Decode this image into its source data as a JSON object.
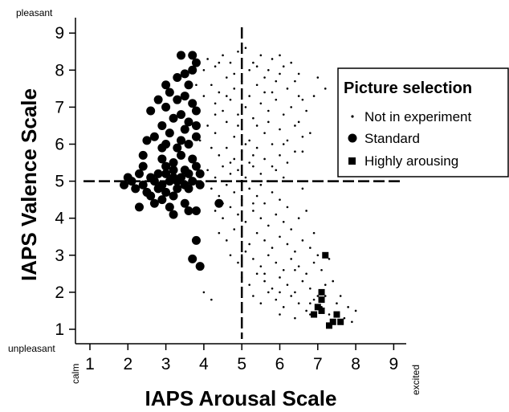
{
  "chart_data": {
    "type": "scatter",
    "xlabel": "IAPS Arousal Scale",
    "ylabel": "IAPS Valence Scale",
    "xlim": [
      0.9,
      9.3
    ],
    "ylim": [
      0.6,
      9.4
    ],
    "x_ticks": [
      "1",
      "2",
      "3",
      "4",
      "5",
      "6",
      "7",
      "8",
      "9"
    ],
    "y_ticks": [
      "1",
      "2",
      "3",
      "4",
      "5",
      "6",
      "7",
      "8",
      "9"
    ],
    "x_low_end_label": "calm",
    "x_high_end_label": "excited",
    "y_high_end_label": "pleasant",
    "y_low_end_label": "unpleasant",
    "reference_lines": {
      "x": 5,
      "y": 5,
      "style": "dashed"
    },
    "grid": false,
    "legend": {
      "title": "Picture selection",
      "placement": "top-right",
      "entries": [
        {
          "label": "Not in experiment",
          "marker": "small-dot"
        },
        {
          "label": "Standard",
          "marker": "large-circle"
        },
        {
          "label": "Highly arousing",
          "marker": "square"
        }
      ]
    },
    "series": [
      {
        "name": "Not in experiment",
        "marker": "small-dot",
        "points": [
          [
            4.1,
            8.3
          ],
          [
            4.3,
            8.1
          ],
          [
            4.5,
            8.4
          ],
          [
            4.7,
            8.2
          ],
          [
            4.9,
            8.5
          ],
          [
            5.1,
            8.6
          ],
          [
            5.3,
            8.2
          ],
          [
            5.5,
            8.4
          ],
          [
            5.2,
            8.0
          ],
          [
            4.8,
            7.9
          ],
          [
            4.2,
            7.6
          ],
          [
            4.4,
            7.4
          ],
          [
            4.6,
            7.8
          ],
          [
            4.8,
            7.5
          ],
          [
            5.0,
            7.7
          ],
          [
            5.2,
            7.3
          ],
          [
            5.4,
            7.6
          ],
          [
            5.6,
            7.8
          ],
          [
            5.8,
            7.4
          ],
          [
            6.0,
            7.9
          ],
          [
            6.2,
            7.5
          ],
          [
            6.4,
            7.7
          ],
          [
            6.6,
            7.2
          ],
          [
            5.7,
            8.0
          ],
          [
            6.1,
            8.1
          ],
          [
            6.5,
            7.9
          ],
          [
            4.3,
            7.1
          ],
          [
            4.5,
            6.9
          ],
          [
            4.7,
            7.2
          ],
          [
            4.9,
            6.8
          ],
          [
            5.1,
            7.0
          ],
          [
            5.3,
            6.7
          ],
          [
            5.5,
            7.1
          ],
          [
            5.7,
            6.9
          ],
          [
            5.9,
            7.2
          ],
          [
            6.1,
            6.8
          ],
          [
            6.3,
            7.0
          ],
          [
            6.5,
            6.6
          ],
          [
            6.7,
            6.9
          ],
          [
            5.6,
            7.4
          ],
          [
            4.1,
            6.5
          ],
          [
            4.3,
            6.3
          ],
          [
            4.6,
            6.6
          ],
          [
            4.8,
            6.2
          ],
          [
            5.0,
            6.4
          ],
          [
            5.2,
            6.1
          ],
          [
            5.4,
            6.5
          ],
          [
            5.6,
            6.3
          ],
          [
            5.8,
            6.0
          ],
          [
            6.0,
            6.4
          ],
          [
            6.2,
            6.1
          ],
          [
            6.4,
            6.5
          ],
          [
            6.6,
            6.2
          ],
          [
            4.2,
            5.9
          ],
          [
            4.4,
            5.7
          ],
          [
            4.6,
            5.9
          ],
          [
            4.8,
            5.6
          ],
          [
            5.0,
            5.8
          ],
          [
            5.2,
            5.5
          ],
          [
            5.4,
            5.9
          ],
          [
            5.6,
            5.6
          ],
          [
            5.8,
            5.4
          ],
          [
            6.0,
            5.7
          ],
          [
            6.2,
            5.5
          ],
          [
            4.1,
            5.3
          ],
          [
            4.3,
            5.1
          ],
          [
            4.5,
            5.4
          ],
          [
            4.7,
            5.2
          ],
          [
            4.9,
            5.3
          ],
          [
            5.1,
            5.1
          ],
          [
            5.3,
            5.4
          ],
          [
            5.5,
            5.2
          ],
          [
            5.7,
            5.0
          ],
          [
            5.9,
            5.3
          ],
          [
            6.1,
            5.1
          ],
          [
            4.2,
            4.8
          ],
          [
            4.4,
            4.6
          ],
          [
            4.6,
            4.9
          ],
          [
            4.8,
            4.7
          ],
          [
            5.0,
            4.5
          ],
          [
            5.2,
            4.8
          ],
          [
            5.4,
            4.6
          ],
          [
            5.6,
            4.4
          ],
          [
            5.8,
            4.7
          ],
          [
            6.0,
            4.5
          ],
          [
            6.2,
            4.3
          ],
          [
            4.3,
            4.2
          ],
          [
            4.5,
            4.0
          ],
          [
            4.7,
            4.3
          ],
          [
            4.9,
            4.1
          ],
          [
            5.1,
            3.9
          ],
          [
            5.3,
            4.2
          ],
          [
            5.5,
            4.0
          ],
          [
            5.7,
            3.8
          ],
          [
            5.9,
            4.1
          ],
          [
            6.1,
            3.9
          ],
          [
            6.3,
            3.7
          ],
          [
            6.5,
            4.0
          ],
          [
            4.4,
            3.6
          ],
          [
            4.6,
            3.4
          ],
          [
            4.8,
            3.7
          ],
          [
            5.0,
            3.5
          ],
          [
            5.2,
            3.3
          ],
          [
            5.4,
            3.6
          ],
          [
            5.6,
            3.4
          ],
          [
            5.8,
            3.2
          ],
          [
            6.0,
            3.5
          ],
          [
            6.2,
            3.3
          ],
          [
            6.4,
            3.1
          ],
          [
            6.6,
            3.4
          ],
          [
            6.8,
            3.2
          ],
          [
            4.7,
            3.0
          ],
          [
            4.9,
            2.8
          ],
          [
            5.1,
            3.1
          ],
          [
            5.3,
            2.9
          ],
          [
            5.5,
            2.7
          ],
          [
            5.7,
            3.0
          ],
          [
            5.9,
            2.8
          ],
          [
            6.1,
            2.6
          ],
          [
            6.3,
            2.9
          ],
          [
            6.5,
            2.7
          ],
          [
            6.7,
            2.5
          ],
          [
            6.9,
            2.8
          ],
          [
            7.1,
            2.6
          ],
          [
            5.0,
            2.4
          ],
          [
            5.2,
            2.2
          ],
          [
            5.4,
            2.5
          ],
          [
            5.6,
            2.3
          ],
          [
            5.8,
            2.1
          ],
          [
            6.0,
            2.4
          ],
          [
            6.2,
            2.2
          ],
          [
            6.4,
            2.0
          ],
          [
            6.6,
            2.3
          ],
          [
            6.8,
            2.1
          ],
          [
            7.0,
            1.9
          ],
          [
            7.2,
            2.2
          ],
          [
            5.3,
            1.9
          ],
          [
            5.5,
            1.7
          ],
          [
            5.7,
            2.0
          ],
          [
            5.9,
            1.8
          ],
          [
            6.1,
            1.6
          ],
          [
            6.3,
            1.9
          ],
          [
            6.5,
            1.7
          ],
          [
            6.7,
            1.5
          ],
          [
            6.9,
            1.8
          ],
          [
            7.1,
            1.6
          ],
          [
            7.3,
            1.4
          ],
          [
            7.5,
            1.7
          ],
          [
            7.7,
            1.3
          ],
          [
            7.9,
            1.2
          ],
          [
            6.0,
            1.4
          ],
          [
            6.4,
            1.3
          ],
          [
            6.8,
            1.4
          ],
          [
            4.2,
            1.8
          ],
          [
            4.0,
            2.0
          ],
          [
            3.9,
            6.1
          ],
          [
            3.8,
            7.6
          ],
          [
            4.0,
            8.0
          ],
          [
            7.0,
            7.8
          ],
          [
            7.2,
            7.5
          ],
          [
            7.7,
            7.7
          ],
          [
            7.8,
            7.4
          ],
          [
            6.9,
            7.3
          ],
          [
            6.0,
            8.4
          ],
          [
            6.3,
            8.2
          ],
          [
            4.6,
            7.3
          ],
          [
            5.4,
            8.1
          ],
          [
            5.9,
            7.7
          ],
          [
            4.3,
            6.8
          ],
          [
            6.8,
            6.3
          ],
          [
            6.6,
            5.8
          ],
          [
            6.4,
            5.8
          ],
          [
            6.6,
            4.8
          ],
          [
            6.7,
            4.2
          ],
          [
            6.9,
            3.6
          ],
          [
            7.0,
            3.0
          ],
          [
            7.3,
            2.9
          ],
          [
            7.4,
            2.3
          ],
          [
            7.6,
            1.9
          ],
          [
            7.8,
            1.6
          ],
          [
            8.0,
            1.5
          ],
          [
            4.9,
            6.5
          ],
          [
            5.1,
            6.0
          ],
          [
            5.3,
            5.7
          ],
          [
            4.7,
            5.5
          ],
          [
            5.7,
            6.6
          ],
          [
            6.1,
            6.0
          ],
          [
            5.5,
            4.9
          ],
          [
            5.3,
            4.4
          ],
          [
            4.5,
            4.4
          ],
          [
            5.0,
            3.0
          ],
          [
            5.6,
            2.5
          ],
          [
            6.0,
            2.0
          ],
          [
            6.4,
            2.6
          ],
          [
            6.8,
            1.7
          ],
          [
            7.2,
            1.9
          ],
          [
            4.4,
            8.2
          ],
          [
            5.8,
            8.3
          ],
          [
            4.0,
            7.3
          ],
          [
            6.5,
            7.3
          ]
        ]
      },
      {
        "name": "Standard",
        "marker": "large-circle",
        "points": [
          [
            3.4,
            8.4
          ],
          [
            3.7,
            8.4
          ],
          [
            3.8,
            8.2
          ],
          [
            3.7,
            8.0
          ],
          [
            3.5,
            7.9
          ],
          [
            3.3,
            7.8
          ],
          [
            3.6,
            7.6
          ],
          [
            3.0,
            7.6
          ],
          [
            3.1,
            7.4
          ],
          [
            3.3,
            7.2
          ],
          [
            3.5,
            7.3
          ],
          [
            3.7,
            7.1
          ],
          [
            2.8,
            7.2
          ],
          [
            2.6,
            6.9
          ],
          [
            3.0,
            7.0
          ],
          [
            3.2,
            6.7
          ],
          [
            3.4,
            6.8
          ],
          [
            3.6,
            6.6
          ],
          [
            3.8,
            6.9
          ],
          [
            2.9,
            6.5
          ],
          [
            3.1,
            6.3
          ],
          [
            3.5,
            6.4
          ],
          [
            2.5,
            6.1
          ],
          [
            2.7,
            6.2
          ],
          [
            3.0,
            6.0
          ],
          [
            3.3,
            5.9
          ],
          [
            3.6,
            6.0
          ],
          [
            3.8,
            6.2
          ],
          [
            2.4,
            5.7
          ],
          [
            2.9,
            5.6
          ],
          [
            3.2,
            5.5
          ],
          [
            3.4,
            5.7
          ],
          [
            3.7,
            5.6
          ],
          [
            3.0,
            5.4
          ],
          [
            3.2,
            5.3
          ],
          [
            3.5,
            5.3
          ],
          [
            3.8,
            5.4
          ],
          [
            2.0,
            5.1
          ],
          [
            2.3,
            5.2
          ],
          [
            2.6,
            5.1
          ],
          [
            2.8,
            5.2
          ],
          [
            3.0,
            5.2
          ],
          [
            3.2,
            5.1
          ],
          [
            3.4,
            5.1
          ],
          [
            3.6,
            5.2
          ],
          [
            3.9,
            5.2
          ],
          [
            1.9,
            4.9
          ],
          [
            2.1,
            5.0
          ],
          [
            2.4,
            4.9
          ],
          [
            2.7,
            5.0
          ],
          [
            2.9,
            4.9
          ],
          [
            3.1,
            5.0
          ],
          [
            3.3,
            5.0
          ],
          [
            3.5,
            4.9
          ],
          [
            3.7,
            5.0
          ],
          [
            3.9,
            4.9
          ],
          [
            2.2,
            4.8
          ],
          [
            2.5,
            4.7
          ],
          [
            2.8,
            4.8
          ],
          [
            3.0,
            4.7
          ],
          [
            3.3,
            4.8
          ],
          [
            3.6,
            4.8
          ],
          [
            2.6,
            4.6
          ],
          [
            2.9,
            4.5
          ],
          [
            3.2,
            4.6
          ],
          [
            2.3,
            4.3
          ],
          [
            2.7,
            4.4
          ],
          [
            3.1,
            4.3
          ],
          [
            3.5,
            4.4
          ],
          [
            3.2,
            4.1
          ],
          [
            3.6,
            4.2
          ],
          [
            3.8,
            4.2
          ],
          [
            4.4,
            4.4
          ],
          [
            3.8,
            3.4
          ],
          [
            3.7,
            2.9
          ],
          [
            3.9,
            2.7
          ],
          [
            2.4,
            5.4
          ],
          [
            3.8,
            6.5
          ],
          [
            3.4,
            6.1
          ],
          [
            2.9,
            5.9
          ]
        ]
      },
      {
        "name": "Highly arousing",
        "marker": "square",
        "points": [
          [
            7.2,
            3.0
          ],
          [
            7.1,
            2.0
          ],
          [
            7.1,
            1.8
          ],
          [
            7.0,
            1.6
          ],
          [
            7.1,
            1.5
          ],
          [
            6.9,
            1.4
          ],
          [
            7.4,
            1.2
          ],
          [
            7.5,
            1.4
          ],
          [
            7.6,
            1.2
          ],
          [
            7.3,
            1.1
          ]
        ]
      }
    ]
  }
}
